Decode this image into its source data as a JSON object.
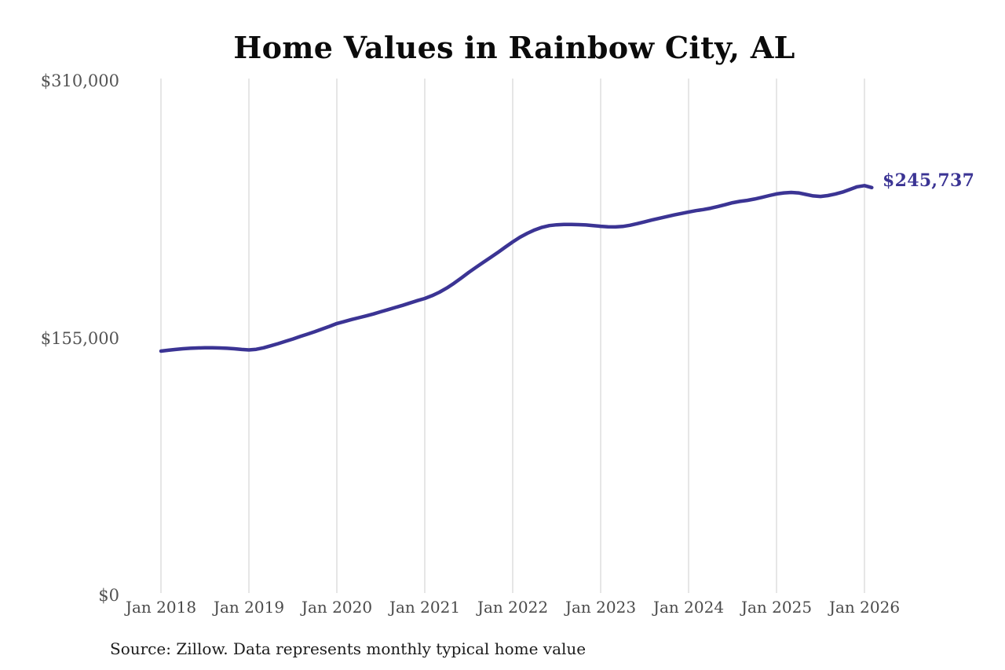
{
  "title": "Home Values in Rainbow City, AL",
  "source_note": "Source: Zillow. Data represents monthly typical home value",
  "end_label": "$245,737",
  "colors": {
    "line": "#3b3494",
    "grid": "#cccccc",
    "y_tick_text": "#545454",
    "x_tick_text": "#4a4a4a",
    "title_text": "#0b0b0b",
    "source_text": "#1c1c1c",
    "end_label_text": "#3b3494",
    "background": "#ffffff"
  },
  "chart_data": {
    "type": "line",
    "title": "Home Values in Rainbow City, AL",
    "xlabel": "",
    "ylabel": "",
    "ylim": [
      0,
      310000
    ],
    "grid": "vertical-only",
    "legend": "none",
    "final_value": 245737,
    "final_value_label": "$245,737",
    "y_ticks": [
      {
        "value": 310000,
        "label": "$310,000"
      },
      {
        "value": 155000,
        "label": "$155,000"
      },
      {
        "value": 0,
        "label": "$0"
      }
    ],
    "x_ticks": [
      {
        "month_index": 0,
        "label": "Jan 2018"
      },
      {
        "month_index": 12,
        "label": "Jan 2019"
      },
      {
        "month_index": 24,
        "label": "Jan 2020"
      },
      {
        "month_index": 36,
        "label": "Jan 2021"
      },
      {
        "month_index": 48,
        "label": "Jan 2022"
      },
      {
        "month_index": 60,
        "label": "Jan 2023"
      },
      {
        "month_index": 72,
        "label": "Jan 2024"
      },
      {
        "month_index": 84,
        "label": "Jan 2025"
      },
      {
        "month_index": 96,
        "label": "Jan 2026"
      }
    ],
    "x": [
      "2018-01",
      "2018-02",
      "2018-03",
      "2018-04",
      "2018-05",
      "2018-06",
      "2018-07",
      "2018-08",
      "2018-09",
      "2018-10",
      "2018-11",
      "2018-12",
      "2019-01",
      "2019-02",
      "2019-03",
      "2019-04",
      "2019-05",
      "2019-06",
      "2019-07",
      "2019-08",
      "2019-09",
      "2019-10",
      "2019-11",
      "2019-12",
      "2020-01",
      "2020-02",
      "2020-03",
      "2020-04",
      "2020-05",
      "2020-06",
      "2020-07",
      "2020-08",
      "2020-09",
      "2020-10",
      "2020-11",
      "2020-12",
      "2021-01",
      "2021-02",
      "2021-03",
      "2021-04",
      "2021-05",
      "2021-06",
      "2021-07",
      "2021-08",
      "2021-09",
      "2021-10",
      "2021-11",
      "2021-12",
      "2022-01",
      "2022-02",
      "2022-03",
      "2022-04",
      "2022-05",
      "2022-06",
      "2022-07",
      "2022-08",
      "2022-09",
      "2022-10",
      "2022-11",
      "2022-12",
      "2023-01",
      "2023-02",
      "2023-03",
      "2023-04",
      "2023-05",
      "2023-06",
      "2023-07",
      "2023-08",
      "2023-09",
      "2023-10",
      "2023-11",
      "2023-12",
      "2024-01",
      "2024-02",
      "2024-03",
      "2024-04",
      "2024-05",
      "2024-06",
      "2024-07",
      "2024-08",
      "2024-09",
      "2024-10",
      "2024-11",
      "2024-12",
      "2025-01",
      "2025-02",
      "2025-03",
      "2025-04",
      "2025-05",
      "2025-06",
      "2025-07",
      "2025-08",
      "2025-09",
      "2025-10",
      "2025-11",
      "2025-12",
      "2026-01",
      "2026-02"
    ],
    "values": [
      147200,
      147700,
      148200,
      148600,
      148900,
      149100,
      149200,
      149200,
      149100,
      148900,
      148600,
      148200,
      147900,
      148300,
      149200,
      150400,
      151700,
      153100,
      154500,
      156000,
      157400,
      158900,
      160500,
      162100,
      163800,
      165000,
      166200,
      167300,
      168400,
      169600,
      170900,
      172200,
      173500,
      174800,
      176200,
      177600,
      178900,
      180600,
      182700,
      185200,
      188100,
      191300,
      194600,
      197700,
      200700,
      203700,
      206700,
      209900,
      213000,
      215800,
      218200,
      220200,
      221800,
      222800,
      223300,
      223500,
      223500,
      223400,
      223200,
      222800,
      222400,
      222100,
      222000,
      222300,
      223000,
      224000,
      225100,
      226200,
      227200,
      228200,
      229200,
      230100,
      231000,
      231800,
      232500,
      233300,
      234300,
      235400,
      236600,
      237400,
      238000,
      238800,
      239800,
      240900,
      241900,
      242500,
      242800,
      242500,
      241600,
      240700,
      240400,
      240900,
      241800,
      243000,
      244600,
      246200,
      246900,
      245737
    ]
  }
}
